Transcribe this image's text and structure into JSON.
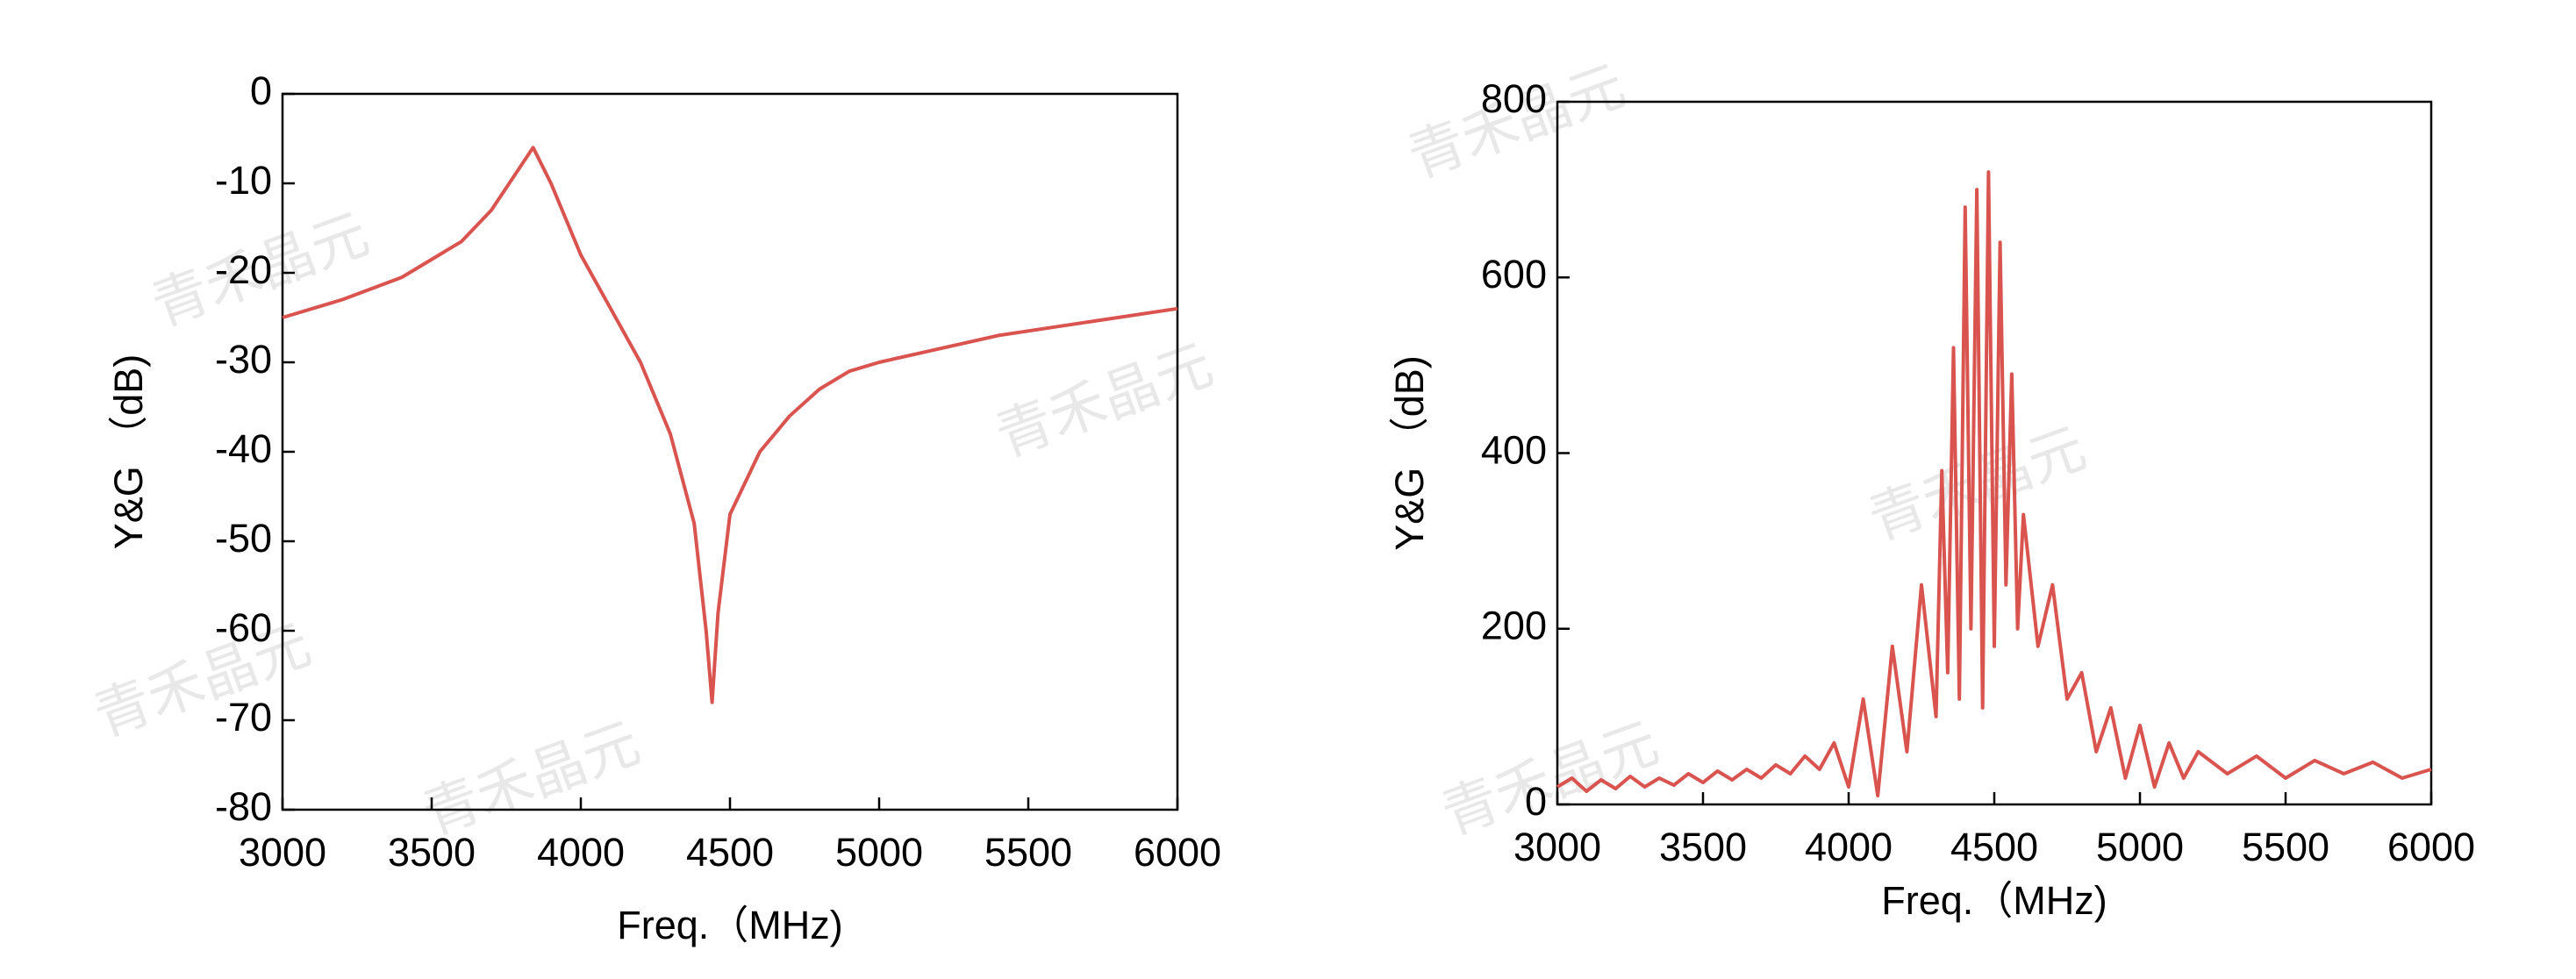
{
  "watermark": "青禾晶元",
  "chart_data": [
    {
      "type": "line",
      "xlabel": "Freq.（MHz)",
      "ylabel": "Y&G （dB)",
      "xlim": [
        3000,
        6000
      ],
      "xticks": [
        3000,
        3500,
        4000,
        4500,
        5000,
        5500,
        6000
      ],
      "ylim": [
        -80,
        0
      ],
      "yticks": [
        0,
        -10,
        -20,
        -30,
        -40,
        -50,
        -60,
        -70,
        -80
      ],
      "series": [
        {
          "color": "#d9534f",
          "x": [
            3000,
            3200,
            3400,
            3600,
            3700,
            3780,
            3840,
            3900,
            4000,
            4100,
            4200,
            4300,
            4380,
            4420,
            4440,
            4460,
            4500,
            4600,
            4700,
            4800,
            4900,
            5000,
            5200,
            5400,
            5600,
            5800,
            6000
          ],
          "values": [
            -25,
            -23,
            -20.5,
            -16.5,
            -13,
            -9,
            -6,
            -10,
            -18,
            -24,
            -30,
            -38,
            -48,
            -60,
            -68,
            -58,
            -47,
            -40,
            -36,
            -33,
            -31,
            -30,
            -28.5,
            -27,
            -26,
            -25,
            -24
          ]
        }
      ]
    },
    {
      "type": "line",
      "xlabel": "Freq.（MHz)",
      "ylabel": "Y&G （dB)",
      "xlim": [
        3000,
        6000
      ],
      "xticks": [
        3000,
        3500,
        4000,
        4500,
        5000,
        5500,
        6000
      ],
      "ylim": [
        0,
        800
      ],
      "yticks": [
        0,
        200,
        400,
        600,
        800
      ],
      "series": [
        {
          "color": "#d9534f",
          "x": [
            3000,
            3050,
            3100,
            3150,
            3200,
            3250,
            3300,
            3350,
            3400,
            3450,
            3500,
            3550,
            3600,
            3650,
            3700,
            3750,
            3800,
            3850,
            3900,
            3950,
            4000,
            4050,
            4100,
            4150,
            4200,
            4250,
            4300,
            4320,
            4340,
            4360,
            4380,
            4400,
            4420,
            4440,
            4460,
            4480,
            4500,
            4520,
            4540,
            4560,
            4580,
            4600,
            4650,
            4700,
            4750,
            4800,
            4850,
            4900,
            4950,
            5000,
            5050,
            5100,
            5150,
            5200,
            5300,
            5400,
            5500,
            5600,
            5700,
            5800,
            5900,
            6000
          ],
          "values": [
            20,
            30,
            15,
            28,
            18,
            32,
            20,
            30,
            22,
            35,
            25,
            38,
            28,
            40,
            30,
            45,
            35,
            55,
            40,
            70,
            20,
            120,
            10,
            180,
            60,
            250,
            100,
            380,
            150,
            520,
            120,
            680,
            200,
            700,
            110,
            720,
            180,
            640,
            250,
            490,
            200,
            330,
            180,
            250,
            120,
            150,
            60,
            110,
            30,
            90,
            20,
            70,
            30,
            60,
            35,
            55,
            30,
            50,
            35,
            48,
            30,
            40
          ]
        }
      ]
    }
  ]
}
